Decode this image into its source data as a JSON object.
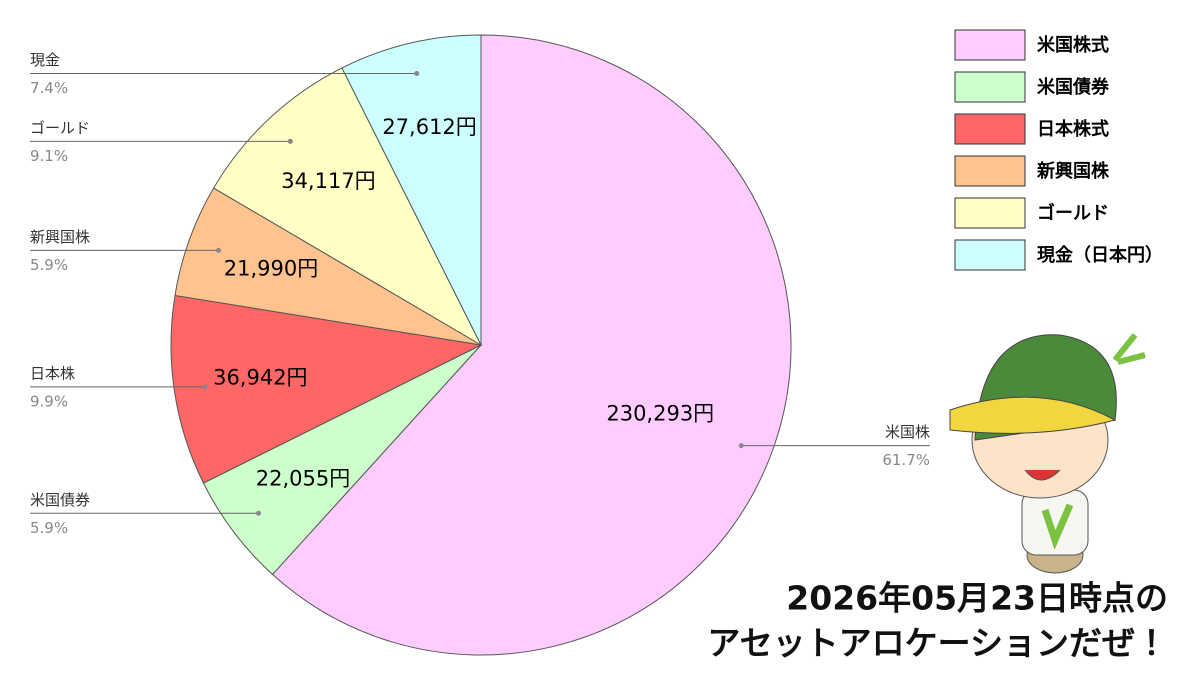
{
  "chart_data": {
    "type": "pie",
    "categories": [
      "米国株式",
      "米国債券",
      "日本株式",
      "新興国株",
      "ゴールド",
      "現金（日本円）"
    ],
    "slice_labels": [
      "米国株",
      "米国債券",
      "日本株",
      "新興国株",
      "ゴールド",
      "現金"
    ],
    "values": [
      230293,
      22055,
      36942,
      21990,
      34117,
      27612
    ],
    "value_labels": [
      "230,293円",
      "22,055円",
      "36,942円",
      "21,990円",
      "34,117円",
      "27,612円"
    ],
    "percentages": [
      61.7,
      5.9,
      9.9,
      5.9,
      9.1,
      7.4
    ],
    "percentage_labels": [
      "61.7%",
      "5.9%",
      "9.9%",
      "5.9%",
      "9.1%",
      "7.4%"
    ],
    "colors": [
      "#ffccff",
      "#ccffcc",
      "#ff6666",
      "#ffc38f",
      "#ffffc6",
      "#ccffff"
    ],
    "legend": "top-right",
    "caption": [
      "2026年05月23日時点の",
      "アセットアロケーションだぜ！"
    ]
  }
}
